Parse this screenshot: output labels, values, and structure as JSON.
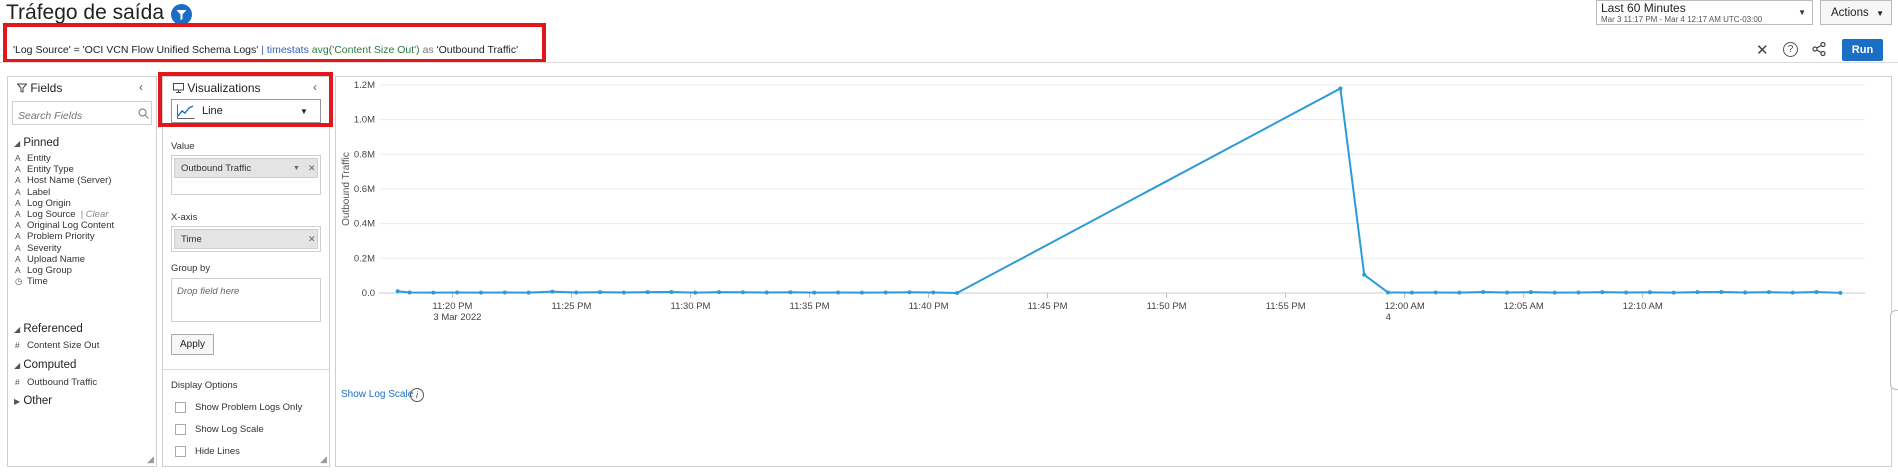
{
  "header": {
    "title": "Tráfego de saída",
    "time_picker": {
      "label": "Last 60 Minutes",
      "range": "Mar 3 11:17 PM - Mar 4 12:17 AM UTC-03:00"
    },
    "actions_label": "Actions"
  },
  "query": {
    "part1": "'Log Source' = 'OCI VCN Flow Unified Schema Logs'",
    "sep": "|",
    "command": "timestats",
    "func": "avg('Content Size Out')",
    "as_kw": "as",
    "alias": "'Outbound Traffic'",
    "run_label": "Run",
    "help_glyph": "?"
  },
  "fields_panel": {
    "title": "Fields",
    "search_placeholder": "Search Fields",
    "pinned_title": "Pinned",
    "pinned": [
      {
        "type": "A",
        "name": "Entity"
      },
      {
        "type": "A",
        "name": "Entity Type"
      },
      {
        "type": "A",
        "name": "Host Name (Server)"
      },
      {
        "type": "A",
        "name": "Label"
      },
      {
        "type": "A",
        "name": "Log Origin"
      },
      {
        "type": "A",
        "name": "Log Source",
        "extra": "| Clear"
      },
      {
        "type": "A",
        "name": "Original Log Content"
      },
      {
        "type": "A",
        "name": "Problem Priority"
      },
      {
        "type": "A",
        "name": "Severity"
      },
      {
        "type": "A",
        "name": "Upload Name"
      },
      {
        "type": "A",
        "name": "Log Group"
      },
      {
        "type": "◷",
        "name": "Time"
      }
    ],
    "referenced_title": "Referenced",
    "referenced": [
      {
        "type": "#",
        "name": "Content Size Out"
      }
    ],
    "computed_title": "Computed",
    "computed": [
      {
        "type": "#",
        "name": "Outbound Traffic"
      }
    ],
    "other_title": "Other"
  },
  "viz_panel": {
    "title": "Visualizations",
    "selected": "Line",
    "value_label": "Value",
    "value_pill": "Outbound Traffic",
    "xaxis_label": "X-axis",
    "xaxis_pill": "Time",
    "groupby_label": "Group by",
    "groupby_placeholder": "Drop field here",
    "apply_label": "Apply",
    "display_options_label": "Display Options",
    "options": [
      {
        "label": "Show Problem Logs Only",
        "checked": false
      },
      {
        "label": "Show Log Scale",
        "checked": false
      },
      {
        "label": "Hide Lines",
        "checked": false
      }
    ]
  },
  "chart_footer": {
    "log_scale_link": "Show Log Scale",
    "info_glyph": "i"
  },
  "chart_data": {
    "type": "line",
    "ylabel": "Outbound Traffic",
    "xlabel": "",
    "ylim": [
      0,
      1200000
    ],
    "y_ticks": [
      {
        "value": 0,
        "label": "0.0"
      },
      {
        "value": 200000,
        "label": "0.2M"
      },
      {
        "value": 400000,
        "label": "0.4M"
      },
      {
        "value": 600000,
        "label": "0.6M"
      },
      {
        "value": 800000,
        "label": "0.8M"
      },
      {
        "value": 1000000,
        "label": "1.0M"
      },
      {
        "value": 1200000,
        "label": "1.2M"
      }
    ],
    "xlim_minutes_from_11pm": [
      17,
      79
    ],
    "x_ticks": [
      {
        "t": 20,
        "label": "11:20 PM",
        "sub": "3 Mar 2022"
      },
      {
        "t": 25,
        "label": "11:25 PM",
        "sub": ""
      },
      {
        "t": 30,
        "label": "11:30 PM",
        "sub": ""
      },
      {
        "t": 35,
        "label": "11:35 PM",
        "sub": ""
      },
      {
        "t": 40,
        "label": "11:40 PM",
        "sub": ""
      },
      {
        "t": 45,
        "label": "11:45 PM",
        "sub": ""
      },
      {
        "t": 50,
        "label": "11:50 PM",
        "sub": ""
      },
      {
        "t": 55,
        "label": "11:55 PM",
        "sub": ""
      },
      {
        "t": 60,
        "label": "12:00 AM",
        "sub": "4"
      },
      {
        "t": 65,
        "label": "12:05 AM",
        "sub": ""
      },
      {
        "t": 70,
        "label": "12:10 AM",
        "sub": ""
      }
    ],
    "grid": true,
    "legend": "none",
    "color": "#2e9bd6",
    "series": [
      {
        "points": [
          [
            17.7,
            10000
          ],
          [
            18.2,
            3000
          ],
          [
            19.2,
            2000
          ],
          [
            20.2,
            3000
          ],
          [
            21.2,
            2000
          ],
          [
            22.2,
            3000
          ],
          [
            23.2,
            2000
          ],
          [
            24.2,
            8000
          ],
          [
            25.2,
            3000
          ],
          [
            26.2,
            5000
          ],
          [
            27.2,
            3000
          ],
          [
            28.2,
            5000
          ],
          [
            29.2,
            6000
          ],
          [
            30.2,
            2000
          ],
          [
            31.2,
            5000
          ],
          [
            32.2,
            4000
          ],
          [
            33.2,
            3000
          ],
          [
            34.2,
            4000
          ],
          [
            35.2,
            2000
          ],
          [
            36.2,
            3000
          ],
          [
            37.2,
            2000
          ],
          [
            38.2,
            3000
          ],
          [
            39.2,
            4000
          ],
          [
            40.2,
            3000
          ],
          [
            41.2,
            0
          ],
          [
            57.3,
            1180000
          ],
          [
            58.3,
            105000
          ],
          [
            59.3,
            3000
          ],
          [
            60.3,
            2000
          ],
          [
            61.3,
            3000
          ],
          [
            62.3,
            2000
          ],
          [
            63.3,
            6000
          ],
          [
            64.3,
            3000
          ],
          [
            65.3,
            5000
          ],
          [
            66.3,
            2000
          ],
          [
            67.3,
            3000
          ],
          [
            68.3,
            5000
          ],
          [
            69.3,
            3000
          ],
          [
            70.3,
            4000
          ],
          [
            71.3,
            2000
          ],
          [
            72.3,
            5000
          ],
          [
            73.3,
            6000
          ],
          [
            74.3,
            3000
          ],
          [
            75.3,
            5000
          ],
          [
            76.3,
            2000
          ],
          [
            77.3,
            6000
          ],
          [
            78.3,
            1000
          ]
        ]
      }
    ]
  }
}
